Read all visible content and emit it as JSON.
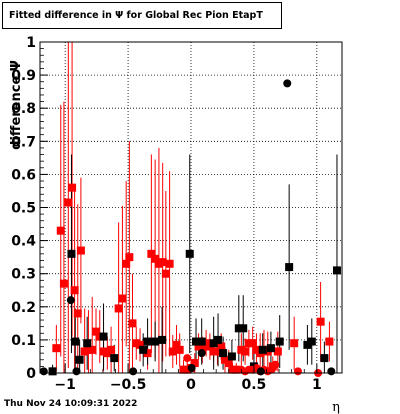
{
  "title": "Fitted difference in  Ψ  for Global Rec Pion EtapT",
  "footer_timestamp": "Thu Nov 24 10:09:31 2022",
  "chart_data": {
    "type": "scatter",
    "title": "Fitted difference in  Ψ  for Global Rec Pion EtapT",
    "xlabel": "η",
    "ylabel": "difference  Ψ",
    "xlim": [
      -1.2,
      1.2
    ],
    "ylim": [
      0,
      1
    ],
    "x_ticks": [
      -1,
      -0.5,
      0,
      0.5,
      1
    ],
    "x_tick_labels": [
      "−1",
      "−0.5",
      "0",
      "0.5",
      "1"
    ],
    "y_ticks": [
      0,
      0.1,
      0.2,
      0.3,
      0.4,
      0.5,
      0.6,
      0.7,
      0.8,
      0.9,
      1
    ],
    "y_tick_labels": [
      "0",
      "0.1",
      "0.2",
      "0.3",
      "0.4",
      "0.5",
      "0.6",
      "0.7",
      "0.8",
      "0.9",
      "1"
    ],
    "grid": true,
    "colors": {
      "red": "#ff0000",
      "black": "#000000"
    },
    "series": [
      {
        "marker": "square",
        "color": "#ff0000",
        "points": [
          {
            "x": -1.07,
            "y": 0.075,
            "err": 0.07
          },
          {
            "x": -1.035,
            "y": 0.43,
            "err": 0.38
          },
          {
            "x": -1.01,
            "y": 0.27,
            "err": 0.55
          },
          {
            "x": -0.975,
            "y": 0.515,
            "err": 0.5
          },
          {
            "x": -0.945,
            "y": 0.56,
            "err": 0.45
          },
          {
            "x": -0.925,
            "y": 0.25,
            "err": 0.3
          },
          {
            "x": -0.9,
            "y": 0.18,
            "err": 0.33
          },
          {
            "x": -0.875,
            "y": 0.37,
            "err": 0.22
          },
          {
            "x": -0.845,
            "y": 0.065,
            "err": 0.13
          },
          {
            "x": -0.815,
            "y": 0.07,
            "err": 0.12
          },
          {
            "x": -0.785,
            "y": 0.07,
            "err": 0.16
          },
          {
            "x": -0.755,
            "y": 0.125,
            "err": 0.07
          },
          {
            "x": -0.725,
            "y": 0.11,
            "err": 0.08
          },
          {
            "x": -0.695,
            "y": 0.065,
            "err": 0.06
          },
          {
            "x": -0.665,
            "y": 0.06,
            "err": 0.05
          },
          {
            "x": -0.635,
            "y": 0.07,
            "err": 0.07
          },
          {
            "x": -0.575,
            "y": 0.195,
            "err": 0.26
          },
          {
            "x": -0.545,
            "y": 0.225,
            "err": 0.28
          },
          {
            "x": -0.515,
            "y": 0.33,
            "err": 0.25
          },
          {
            "x": -0.49,
            "y": 0.35,
            "err": 0.35
          },
          {
            "x": -0.465,
            "y": 0.15,
            "err": 0.15
          },
          {
            "x": -0.435,
            "y": 0.09,
            "err": 0.05
          },
          {
            "x": -0.405,
            "y": 0.085,
            "err": 0.05
          },
          {
            "x": -0.345,
            "y": 0.06,
            "err": 0.05
          },
          {
            "x": -0.315,
            "y": 0.36,
            "err": 0.3
          },
          {
            "x": -0.285,
            "y": 0.345,
            "err": 0.3
          },
          {
            "x": -0.255,
            "y": 0.33,
            "err": 0.35
          },
          {
            "x": -0.225,
            "y": 0.335,
            "err": 0.3
          },
          {
            "x": -0.2,
            "y": 0.3,
            "err": 0.25
          },
          {
            "x": -0.17,
            "y": 0.33,
            "err": 0.28
          },
          {
            "x": -0.145,
            "y": 0.065,
            "err": 0.05
          },
          {
            "x": -0.115,
            "y": 0.085,
            "err": 0.06
          },
          {
            "x": -0.09,
            "y": 0.07,
            "err": 0.05
          },
          {
            "x": -0.06,
            "y": 0.01,
            "err": 0.03
          },
          {
            "x": -0.03,
            "y": 0.01,
            "err": 0.03
          },
          {
            "x": 0.0,
            "y": 0.015,
            "err": 0.02
          },
          {
            "x": 0.03,
            "y": 0.03,
            "err": 0.03
          },
          {
            "x": 0.06,
            "y": 0.08,
            "err": 0.04
          },
          {
            "x": 0.09,
            "y": 0.07,
            "err": 0.04
          },
          {
            "x": 0.12,
            "y": 0.09,
            "err": 0.04
          },
          {
            "x": 0.15,
            "y": 0.08,
            "err": 0.04
          },
          {
            "x": 0.18,
            "y": 0.065,
            "err": 0.03
          },
          {
            "x": 0.21,
            "y": 0.065,
            "err": 0.04
          },
          {
            "x": 0.24,
            "y": 0.08,
            "err": 0.04
          },
          {
            "x": 0.27,
            "y": 0.04,
            "err": 0.04
          },
          {
            "x": 0.3,
            "y": 0.03,
            "err": 0.04
          },
          {
            "x": 0.33,
            "y": 0.01,
            "err": 0.02
          },
          {
            "x": 0.36,
            "y": 0.01,
            "err": 0.02
          },
          {
            "x": 0.4,
            "y": 0.07,
            "err": 0.05
          },
          {
            "x": 0.43,
            "y": 0.065,
            "err": 0.04
          },
          {
            "x": 0.46,
            "y": 0.09,
            "err": 0.04
          },
          {
            "x": 0.49,
            "y": 0.09,
            "err": 0.05
          },
          {
            "x": 0.52,
            "y": 0.07,
            "err": 0.05
          },
          {
            "x": 0.55,
            "y": 0.06,
            "err": 0.06
          },
          {
            "x": 0.58,
            "y": 0.07,
            "err": 0.06
          },
          {
            "x": 0.61,
            "y": 0.065,
            "err": 0.06
          },
          {
            "x": 0.65,
            "y": 0.02,
            "err": 0.03
          },
          {
            "x": 0.69,
            "y": 0.065,
            "err": 0.06
          },
          {
            "x": 0.82,
            "y": 0.09,
            "err": 0.08
          },
          {
            "x": 1.03,
            "y": 0.155,
            "err": 0.12
          },
          {
            "x": 1.1,
            "y": 0.095,
            "err": 0.06
          }
        ]
      },
      {
        "marker": "square",
        "color": "#000000",
        "points": [
          {
            "x": -1.1,
            "y": 0.005,
            "err": 0.02
          },
          {
            "x": -0.95,
            "y": 0.36,
            "err": 0.3
          },
          {
            "x": -0.92,
            "y": 0.095,
            "err": 0.1
          },
          {
            "x": -0.885,
            "y": 0.04,
            "err": 0.06
          },
          {
            "x": -0.825,
            "y": 0.09,
            "err": 0.08
          },
          {
            "x": -0.695,
            "y": 0.11,
            "err": 0.1
          },
          {
            "x": -0.61,
            "y": 0.045,
            "err": 0.04
          },
          {
            "x": -0.38,
            "y": 0.07,
            "err": 0.05
          },
          {
            "x": -0.345,
            "y": 0.095,
            "err": 0.07
          },
          {
            "x": -0.285,
            "y": 0.095,
            "err": 0.06
          },
          {
            "x": -0.23,
            "y": 0.1,
            "err": 0.1
          },
          {
            "x": -0.01,
            "y": 0.36,
            "err": 0.3
          },
          {
            "x": 0.04,
            "y": 0.095,
            "err": 0.07
          },
          {
            "x": 0.085,
            "y": 0.095,
            "err": 0.07
          },
          {
            "x": 0.18,
            "y": 0.09,
            "err": 0.08
          },
          {
            "x": 0.215,
            "y": 0.1,
            "err": 0.08
          },
          {
            "x": 0.255,
            "y": 0.06,
            "err": 0.05
          },
          {
            "x": 0.325,
            "y": 0.05,
            "err": 0.05
          },
          {
            "x": 0.38,
            "y": 0.135,
            "err": 0.1
          },
          {
            "x": 0.415,
            "y": 0.135,
            "err": 0.1
          },
          {
            "x": 0.5,
            "y": 0.02,
            "err": 0.05
          },
          {
            "x": 0.57,
            "y": 0.07,
            "err": 0.05
          },
          {
            "x": 0.635,
            "y": 0.075,
            "err": 0.05
          },
          {
            "x": 0.705,
            "y": 0.095,
            "err": 0.08
          },
          {
            "x": 0.78,
            "y": 0.32,
            "err": 0.25
          },
          {
            "x": 0.925,
            "y": 0.085,
            "err": 0.06
          },
          {
            "x": 0.96,
            "y": 0.095,
            "err": 0.07
          },
          {
            "x": 1.06,
            "y": 0.045,
            "err": 0.05
          },
          {
            "x": 1.16,
            "y": 0.31,
            "err": 0.35
          }
        ]
      },
      {
        "marker": "circle",
        "color": "#ff0000",
        "points": [
          {
            "x": -0.03,
            "y": 0.045
          },
          {
            "x": 0.4,
            "y": 0.01
          },
          {
            "x": 0.43,
            "y": 0.005
          },
          {
            "x": 0.46,
            "y": 0.01
          },
          {
            "x": 0.49,
            "y": 0.01
          },
          {
            "x": 0.52,
            "y": 0.015
          },
          {
            "x": 0.55,
            "y": 0.005
          },
          {
            "x": 0.58,
            "y": 0.01
          },
          {
            "x": 0.61,
            "y": 0.005
          },
          {
            "x": 0.64,
            "y": 0.01
          },
          {
            "x": 0.67,
            "y": 0.025
          },
          {
            "x": 0.85,
            "y": 0.005
          },
          {
            "x": 1.01,
            "y": 0.0
          }
        ]
      },
      {
        "marker": "circle",
        "color": "#000000",
        "points": [
          {
            "x": -1.17,
            "y": 0.005
          },
          {
            "x": -0.955,
            "y": 0.22
          },
          {
            "x": -0.91,
            "y": 0.005
          },
          {
            "x": -0.46,
            "y": 0.005
          },
          {
            "x": 0.005,
            "y": 0.015
          },
          {
            "x": 0.085,
            "y": 0.06
          },
          {
            "x": 0.555,
            "y": 0.005
          },
          {
            "x": 0.765,
            "y": 0.875
          },
          {
            "x": 1.115,
            "y": 0.005
          }
        ]
      }
    ]
  }
}
